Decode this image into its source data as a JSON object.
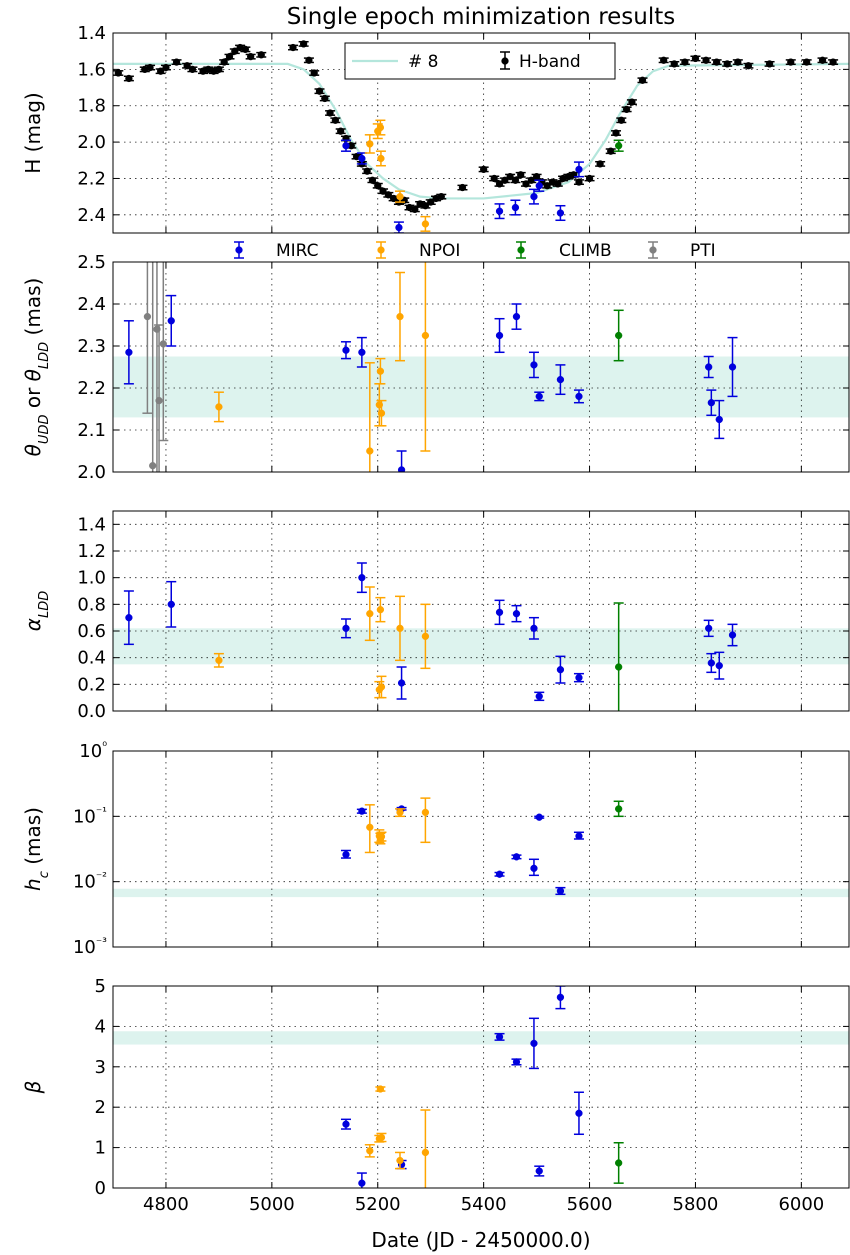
{
  "chart_data": {
    "type": "scatter",
    "title": "Single epoch minimization results",
    "xlabel": "Date (JD - 2450000.0)",
    "xlim": [
      4700,
      6090
    ],
    "x_ticks": [
      "4800",
      "5000",
      "5200",
      "5400",
      "5600",
      "5800",
      "6000"
    ],
    "x_tick_values": [
      4800,
      5000,
      5200,
      5400,
      5600,
      5800,
      6000
    ],
    "colors": {
      "MIRC": "#0000dd",
      "NPOI": "#ffa500",
      "CLIMB": "#008000",
      "PTI": "#808080",
      "H-band": "#000000",
      "model": "#b4e6dc",
      "band": "#ddf3ee"
    },
    "panels": [
      {
        "id": "hmag",
        "ylabel": "H (mag)",
        "yscale": "linear",
        "ylim": [
          1.4,
          2.5
        ],
        "inverted": true,
        "y_ticks": [
          "1.4",
          "1.6",
          "1.8",
          "2.0",
          "2.2",
          "2.4"
        ],
        "y_tick_values": [
          1.4,
          1.6,
          1.8,
          2.0,
          2.2,
          2.4
        ],
        "legend": {
          "position": "upper-center",
          "entries": [
            "# 8",
            "H-band"
          ]
        },
        "model": {
          "name": "# 8",
          "x": [
            4700,
            5030,
            5060,
            5090,
            5120,
            5150,
            5180,
            5210,
            5240,
            5280,
            5320,
            5400,
            5500,
            5560,
            5600,
            5630,
            5660,
            5690,
            5720,
            5750,
            6090
          ],
          "y": [
            1.57,
            1.57,
            1.6,
            1.68,
            1.82,
            1.99,
            2.12,
            2.2,
            2.26,
            2.3,
            2.31,
            2.31,
            2.28,
            2.22,
            2.12,
            1.99,
            1.83,
            1.69,
            1.61,
            1.58,
            1.57
          ]
        },
        "hband": {
          "name": "H-band",
          "x": [
            4710,
            4730,
            4760,
            4770,
            4790,
            4800,
            4820,
            4840,
            4850,
            4870,
            4880,
            4890,
            4900,
            4910,
            4920,
            4930,
            4940,
            4950,
            4960,
            4980,
            5040,
            5060,
            5070,
            5080,
            5090,
            5100,
            5110,
            5120,
            5130,
            5140,
            5150,
            5160,
            5170,
            5180,
            5190,
            5200,
            5210,
            5220,
            5230,
            5240,
            5250,
            5260,
            5270,
            5280,
            5290,
            5300,
            5310,
            5320,
            5360,
            5400,
            5420,
            5430,
            5440,
            5450,
            5460,
            5470,
            5480,
            5490,
            5500,
            5510,
            5520,
            5530,
            5540,
            5550,
            5560,
            5570,
            5580,
            5600,
            5620,
            5640,
            5650,
            5660,
            5670,
            5680,
            5700,
            5740,
            5760,
            5780,
            5800,
            5820,
            5840,
            5860,
            5880,
            5900,
            5940,
            5980,
            6010,
            6040,
            6060
          ],
          "y": [
            1.62,
            1.65,
            1.6,
            1.59,
            1.61,
            1.59,
            1.56,
            1.58,
            1.6,
            1.61,
            1.6,
            1.61,
            1.6,
            1.56,
            1.53,
            1.5,
            1.48,
            1.49,
            1.53,
            1.52,
            1.48,
            1.46,
            1.55,
            1.62,
            1.72,
            1.76,
            1.84,
            1.88,
            1.94,
            1.98,
            2.02,
            2.08,
            2.12,
            2.16,
            2.21,
            2.24,
            2.27,
            2.29,
            2.31,
            2.33,
            2.32,
            2.36,
            2.37,
            2.34,
            2.35,
            2.33,
            2.31,
            2.3,
            2.25,
            2.15,
            2.2,
            2.23,
            2.21,
            2.19,
            2.21,
            2.18,
            2.23,
            2.21,
            2.19,
            2.22,
            2.24,
            2.22,
            2.23,
            2.2,
            2.19,
            2.18,
            2.22,
            2.2,
            2.12,
            2.05,
            1.95,
            1.88,
            1.82,
            1.78,
            1.66,
            1.55,
            1.57,
            1.56,
            1.54,
            1.55,
            1.56,
            1.57,
            1.56,
            1.58,
            1.57,
            1.56,
            1.56,
            1.55,
            1.56
          ]
        },
        "series": [
          {
            "name": "MIRC",
            "x": [
              5140,
              5170,
              5240,
              5430,
              5460,
              5495,
              5505,
              5545,
              5580
            ],
            "y": [
              2.02,
              2.09,
              2.47,
              2.38,
              2.36,
              2.3,
              2.24,
              2.39,
              2.15
            ],
            "err": [
              0.03,
              0.03,
              0.03,
              0.04,
              0.04,
              0.04,
              0.03,
              0.04,
              0.04
            ]
          },
          {
            "name": "NPOI",
            "x": [
              5185,
              5200,
              5205,
              5206,
              5242,
              5290
            ],
            "y": [
              2.01,
              1.94,
              1.92,
              2.09,
              2.3,
              2.45
            ],
            "err": [
              0.05,
              0.04,
              0.04,
              0.04,
              0.03,
              0.04
            ]
          },
          {
            "name": "CLIMB",
            "x": [
              5655
            ],
            "y": [
              2.02
            ],
            "err": [
              0.03
            ]
          }
        ]
      },
      {
        "id": "theta",
        "ylabel": "θ_UDD or θ_LDD (mas)",
        "yscale": "linear",
        "ylim": [
          2.0,
          2.5
        ],
        "y_ticks": [
          "2.0",
          "2.1",
          "2.2",
          "2.3",
          "2.4",
          "2.5"
        ],
        "y_tick_values": [
          2.0,
          2.1,
          2.2,
          2.3,
          2.4,
          2.5
        ],
        "band": [
          2.13,
          2.275
        ],
        "legend": {
          "position": "above",
          "entries": [
            "MIRC",
            "NPOI",
            "CLIMB",
            "PTI"
          ]
        },
        "series": [
          {
            "name": "MIRC",
            "x": [
              4730,
              4810,
              5140,
              5170,
              5245,
              5430,
              5462,
              5495,
              5505,
              5545,
              5580,
              5825,
              5830,
              5845,
              5870
            ],
            "y": [
              2.285,
              2.36,
              2.29,
              2.285,
              2.005,
              2.325,
              2.37,
              2.255,
              2.18,
              2.22,
              2.18,
              2.25,
              2.165,
              2.125,
              2.25
            ],
            "err": [
              0.075,
              0.06,
              0.02,
              0.035,
              0.045,
              0.04,
              0.03,
              0.03,
              0.01,
              0.035,
              0.015,
              0.025,
              0.03,
              0.045,
              0.07
            ]
          },
          {
            "name": "NPOI",
            "x": [
              4900,
              5185,
              5203,
              5205,
              5207,
              5242,
              5290
            ],
            "y": [
              2.155,
              2.05,
              2.16,
              2.24,
              2.14,
              2.37,
              2.325
            ],
            "err": [
              0.035,
              0.21,
              0.05,
              0.03,
              0.03,
              0.105,
              0.275
            ]
          },
          {
            "name": "CLIMB",
            "x": [
              5655
            ],
            "y": [
              2.325
            ],
            "err": [
              0.06
            ]
          },
          {
            "name": "PTI",
            "x": [
              4765,
              4775,
              4783,
              4787,
              4795
            ],
            "y": [
              2.37,
              2.015,
              2.34,
              2.17,
              2.305
            ],
            "err": [
              0.23,
              0.7,
              0.5,
              0.18,
              0.23
            ]
          }
        ]
      },
      {
        "id": "alpha",
        "ylabel": "α_LDD",
        "yscale": "linear",
        "ylim": [
          0.0,
          1.5
        ],
        "y_ticks": [
          "0.0",
          "0.2",
          "0.4",
          "0.6",
          "0.8",
          "1.0",
          "1.2",
          "1.4"
        ],
        "y_tick_values": [
          0.0,
          0.2,
          0.4,
          0.6,
          0.8,
          1.0,
          1.2,
          1.4
        ],
        "band": [
          0.35,
          0.62
        ],
        "series": [
          {
            "name": "MIRC",
            "x": [
              4730,
              4810,
              5140,
              5170,
              5245,
              5430,
              5462,
              5495,
              5505,
              5545,
              5580,
              5825,
              5830,
              5845,
              5870
            ],
            "y": [
              0.7,
              0.8,
              0.62,
              1.0,
              0.21,
              0.74,
              0.73,
              0.62,
              0.11,
              0.31,
              0.25,
              0.62,
              0.36,
              0.34,
              0.57
            ],
            "err": [
              0.2,
              0.17,
              0.07,
              0.11,
              0.12,
              0.09,
              0.06,
              0.08,
              0.03,
              0.1,
              0.03,
              0.06,
              0.07,
              0.1,
              0.08
            ]
          },
          {
            "name": "NPOI",
            "x": [
              4900,
              5185,
              5203,
              5205,
              5207,
              5242,
              5290
            ],
            "y": [
              0.38,
              0.73,
              0.16,
              0.76,
              0.18,
              0.62,
              0.56
            ],
            "err": [
              0.05,
              0.2,
              0.06,
              0.09,
              0.08,
              0.24,
              0.24
            ]
          },
          {
            "name": "CLIMB",
            "x": [
              5655
            ],
            "y": [
              0.33
            ],
            "err": [
              0.48
            ]
          }
        ]
      },
      {
        "id": "hc",
        "ylabel": "h_c (mas)",
        "yscale": "log",
        "ylim": [
          0.001,
          1.0
        ],
        "y_ticks": [
          "10⁻³",
          "10⁻²",
          "10⁻¹",
          "10⁰"
        ],
        "y_tick_values": [
          0.001,
          0.01,
          0.1,
          1.0
        ],
        "band": [
          0.0058,
          0.0078
        ],
        "series": [
          {
            "name": "MIRC",
            "x": [
              5140,
              5170,
              5245,
              5430,
              5462,
              5495,
              5505,
              5545,
              5580
            ],
            "y": [
              0.026,
              0.12,
              0.13,
              0.013,
              0.024,
              0.016,
              0.097,
              0.0072,
              0.05
            ],
            "err_lo": [
              0.023,
              0.112,
              0.125,
              0.0122,
              0.0225,
              0.0125,
              0.094,
              0.0064,
              0.045
            ],
            "err_hi": [
              0.03,
              0.128,
              0.136,
              0.0138,
              0.0255,
              0.022,
              0.1,
              0.0081,
              0.057
            ]
          },
          {
            "name": "NPOI",
            "x": [
              5185,
              5203,
              5205,
              5207,
              5242,
              5290
            ],
            "y": [
              0.068,
              0.05,
              0.045,
              0.049,
              0.115,
              0.115
            ],
            "err_lo": [
              0.028,
              0.04,
              0.038,
              0.042,
              0.1,
              0.04
            ],
            "err_hi": [
              0.15,
              0.062,
              0.055,
              0.057,
              0.13,
              0.19
            ]
          },
          {
            "name": "CLIMB",
            "x": [
              5655
            ],
            "y": [
              0.13
            ],
            "err_lo": [
              0.1
            ],
            "err_hi": [
              0.17
            ]
          }
        ]
      },
      {
        "id": "beta",
        "ylabel": "β",
        "yscale": "linear",
        "ylim": [
          0,
          5
        ],
        "y_ticks": [
          "0",
          "1",
          "2",
          "3",
          "4",
          "5"
        ],
        "y_tick_values": [
          0,
          1,
          2,
          3,
          4,
          5
        ],
        "band": [
          3.55,
          3.88
        ],
        "series": [
          {
            "name": "MIRC",
            "x": [
              5140,
              5170,
              5245,
              5430,
              5462,
              5495,
              5505,
              5545,
              5580
            ],
            "y": [
              1.58,
              0.12,
              0.58,
              3.74,
              3.12,
              3.58,
              0.42,
              4.72,
              1.85
            ],
            "err": [
              0.12,
              0.25,
              0.1,
              0.08,
              0.07,
              0.62,
              0.12,
              0.28,
              0.52
            ]
          },
          {
            "name": "NPOI",
            "x": [
              5185,
              5203,
              5205,
              5207,
              5242,
              5290
            ],
            "y": [
              0.92,
              1.22,
              2.45,
              1.25,
              0.68,
              0.88
            ],
            "err": [
              0.15,
              0.08,
              0.05,
              0.1,
              0.2,
              1.05
            ]
          },
          {
            "name": "CLIMB",
            "x": [
              5655
            ],
            "y": [
              0.62
            ],
            "err": [
              0.5
            ]
          }
        ]
      }
    ]
  }
}
